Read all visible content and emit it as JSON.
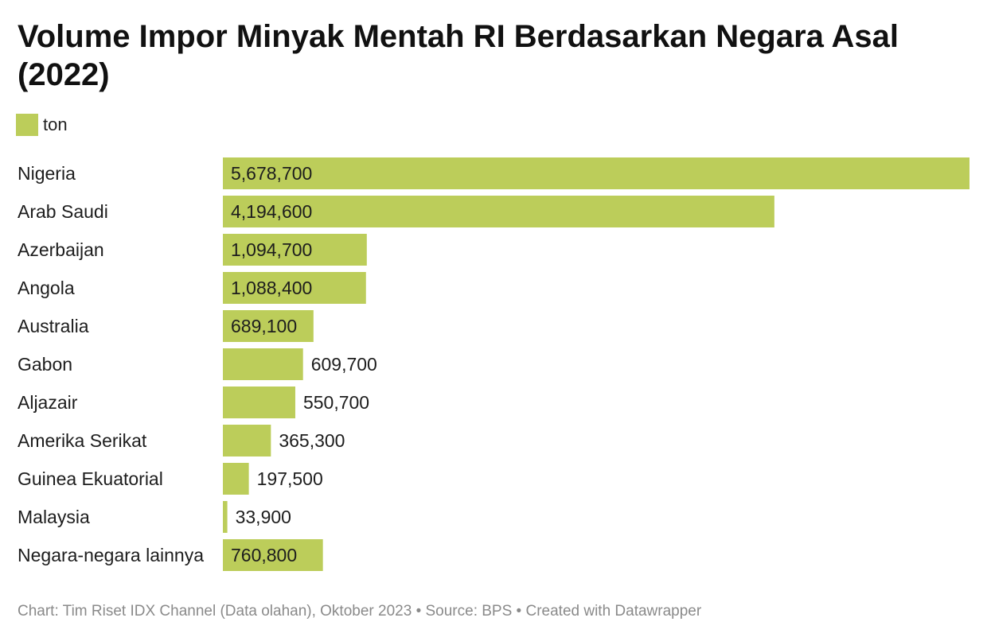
{
  "title": "Volume Impor Minyak Mentah RI Berdasarkan Negara Asal (2022)",
  "legend": {
    "label": "ton",
    "color": "#bccd5a"
  },
  "footer": "Chart: Tim Riset IDX Channel (Data olahan), Oktober 2023 • Source: BPS • Created with Datawrapper",
  "chart_data": {
    "type": "bar",
    "orientation": "horizontal",
    "title": "Volume Impor Minyak Mentah RI Berdasarkan Negara Asal (2022)",
    "categories": [
      "Nigeria",
      "Arab Saudi",
      "Azerbaijan",
      "Angola",
      "Australia",
      "Gabon",
      "Aljazair",
      "Amerika Serikat",
      "Guinea Ekuatorial",
      "Malaysia",
      "Negara-negara lainnya"
    ],
    "series": [
      {
        "name": "ton",
        "values": [
          5678700,
          4194600,
          1094700,
          1088400,
          689100,
          609700,
          550700,
          365300,
          197500,
          33900,
          760800
        ]
      }
    ],
    "value_labels": [
      "5,678,700",
      "4,194,600",
      "1,094,700",
      "1,088,400",
      "689,100",
      "609,700",
      "550,700",
      "365,300",
      "197,500",
      "33,900",
      "760,800"
    ],
    "xlim": [
      0,
      5678700
    ],
    "grid": false,
    "legend_position": "top-left",
    "bar_color": "#bccd5a"
  }
}
